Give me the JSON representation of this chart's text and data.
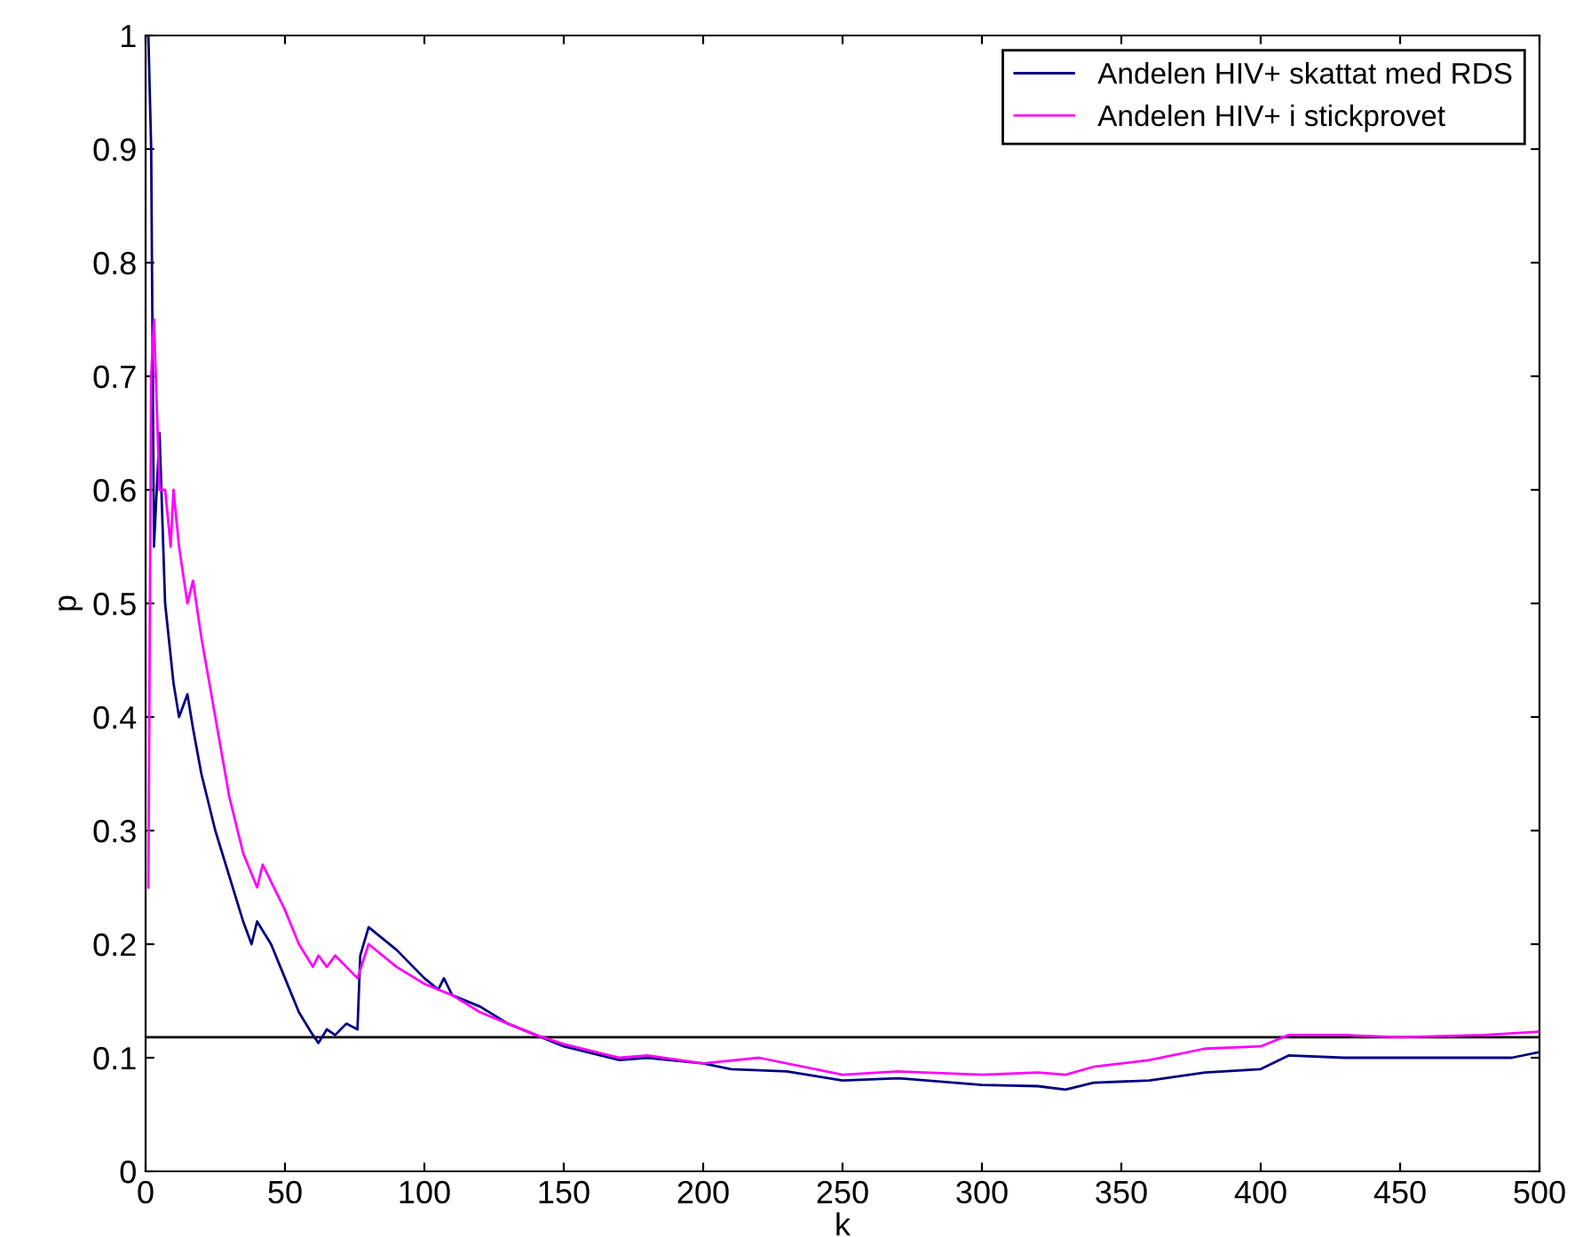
{
  "chart_data": {
    "type": "line",
    "xlabel": "k",
    "ylabel": "p",
    "xlim": [
      0,
      500
    ],
    "ylim": [
      0,
      1
    ],
    "xticks": [
      0,
      50,
      100,
      150,
      200,
      250,
      300,
      350,
      400,
      450,
      500
    ],
    "yticks": [
      0,
      0.1,
      0.2,
      0.3,
      0.4,
      0.5,
      0.6,
      0.7,
      0.8,
      0.9,
      1
    ],
    "grid": false,
    "legend": "top right",
    "line_style": "solid",
    "marker": "none",
    "ref_lines": [
      {
        "axis": "y",
        "value": 0.118,
        "color": "#000000"
      }
    ],
    "series": [
      {
        "name": "Andelen HIV+ skattat med RDS",
        "color": "#000080",
        "x": [
          1,
          2,
          3,
          5,
          7,
          10,
          12,
          15,
          17,
          20,
          25,
          30,
          35,
          38,
          40,
          45,
          50,
          55,
          60,
          62,
          65,
          68,
          72,
          76,
          77,
          80,
          90,
          100,
          105,
          107,
          110,
          120,
          130,
          140,
          150,
          170,
          180,
          200,
          210,
          230,
          250,
          270,
          300,
          320,
          330,
          340,
          360,
          380,
          400,
          410,
          430,
          450,
          470,
          490,
          500
        ],
        "values": [
          1.0,
          0.9,
          0.55,
          0.65,
          0.5,
          0.43,
          0.4,
          0.42,
          0.39,
          0.35,
          0.3,
          0.26,
          0.22,
          0.2,
          0.22,
          0.2,
          0.17,
          0.14,
          0.12,
          0.113,
          0.125,
          0.12,
          0.13,
          0.125,
          0.19,
          0.215,
          0.195,
          0.17,
          0.16,
          0.17,
          0.155,
          0.145,
          0.13,
          0.12,
          0.11,
          0.098,
          0.1,
          0.095,
          0.09,
          0.088,
          0.08,
          0.082,
          0.076,
          0.075,
          0.072,
          0.078,
          0.08,
          0.087,
          0.09,
          0.102,
          0.1,
          0.1,
          0.1,
          0.1,
          0.105
        ]
      },
      {
        "name": "Andelen HIV+ i stickprovet",
        "color": "#ff00ff",
        "x": [
          1,
          2,
          3,
          5,
          7,
          9,
          10,
          12,
          15,
          17,
          20,
          25,
          30,
          35,
          40,
          42,
          50,
          55,
          60,
          62,
          65,
          68,
          72,
          76,
          80,
          90,
          100,
          110,
          120,
          130,
          140,
          150,
          170,
          180,
          200,
          220,
          250,
          270,
          300,
          320,
          330,
          340,
          360,
          380,
          400,
          410,
          430,
          450,
          480,
          500
        ],
        "values": [
          0.25,
          0.7,
          0.75,
          0.6,
          0.6,
          0.55,
          0.6,
          0.55,
          0.5,
          0.52,
          0.47,
          0.4,
          0.33,
          0.28,
          0.25,
          0.27,
          0.23,
          0.2,
          0.18,
          0.19,
          0.18,
          0.19,
          0.18,
          0.17,
          0.2,
          0.18,
          0.165,
          0.155,
          0.14,
          0.13,
          0.12,
          0.112,
          0.1,
          0.102,
          0.095,
          0.1,
          0.085,
          0.088,
          0.085,
          0.087,
          0.085,
          0.092,
          0.098,
          0.108,
          0.11,
          0.12,
          0.12,
          0.118,
          0.12,
          0.123
        ]
      }
    ]
  }
}
